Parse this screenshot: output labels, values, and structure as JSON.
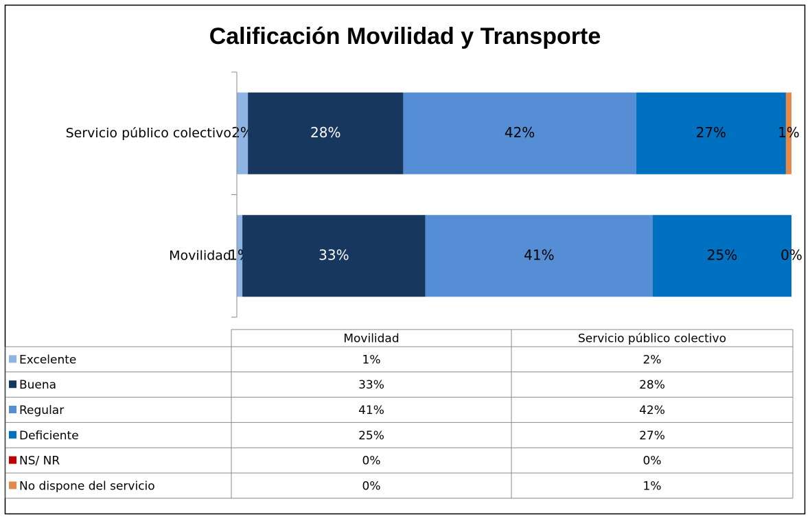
{
  "chart_data": {
    "type": "stacked_barh",
    "title": "Calificación Movilidad y Transporte",
    "categories": [
      "Movilidad",
      "Servicio público colectivo"
    ],
    "xlim": [
      0,
      100
    ],
    "series": [
      {
        "name": "Excelente",
        "color": "#8db4e2",
        "label_color": "#000000",
        "show_labels": true,
        "values": [
          1,
          2
        ],
        "value_labels": [
          "1%",
          "2%"
        ]
      },
      {
        "name": "Buena",
        "color": "#17375e",
        "label_color": "#ffffff",
        "show_labels": true,
        "values": [
          33,
          28
        ],
        "value_labels": [
          "33%",
          "28%"
        ]
      },
      {
        "name": "Regular",
        "color": "#558ed5",
        "label_color": "#000000",
        "show_labels": true,
        "values": [
          41,
          42
        ],
        "value_labels": [
          "41%",
          "42%"
        ]
      },
      {
        "name": "Deficiente",
        "color": "#0070c0",
        "label_color": "#000000",
        "show_labels": true,
        "values": [
          25,
          27
        ],
        "value_labels": [
          "25%",
          "27%"
        ]
      },
      {
        "name": "NS/ NR",
        "color": "#c00000",
        "label_color": "#000000",
        "show_labels": false,
        "values": [
          0,
          0
        ],
        "value_labels": [
          "0%",
          "0%"
        ]
      },
      {
        "name": "No dispone del servicio",
        "color": "#e3894a",
        "label_color": "#000000",
        "show_labels": true,
        "values": [
          0,
          1
        ],
        "value_labels": [
          "0%",
          "1%"
        ]
      }
    ],
    "data_table": true
  }
}
